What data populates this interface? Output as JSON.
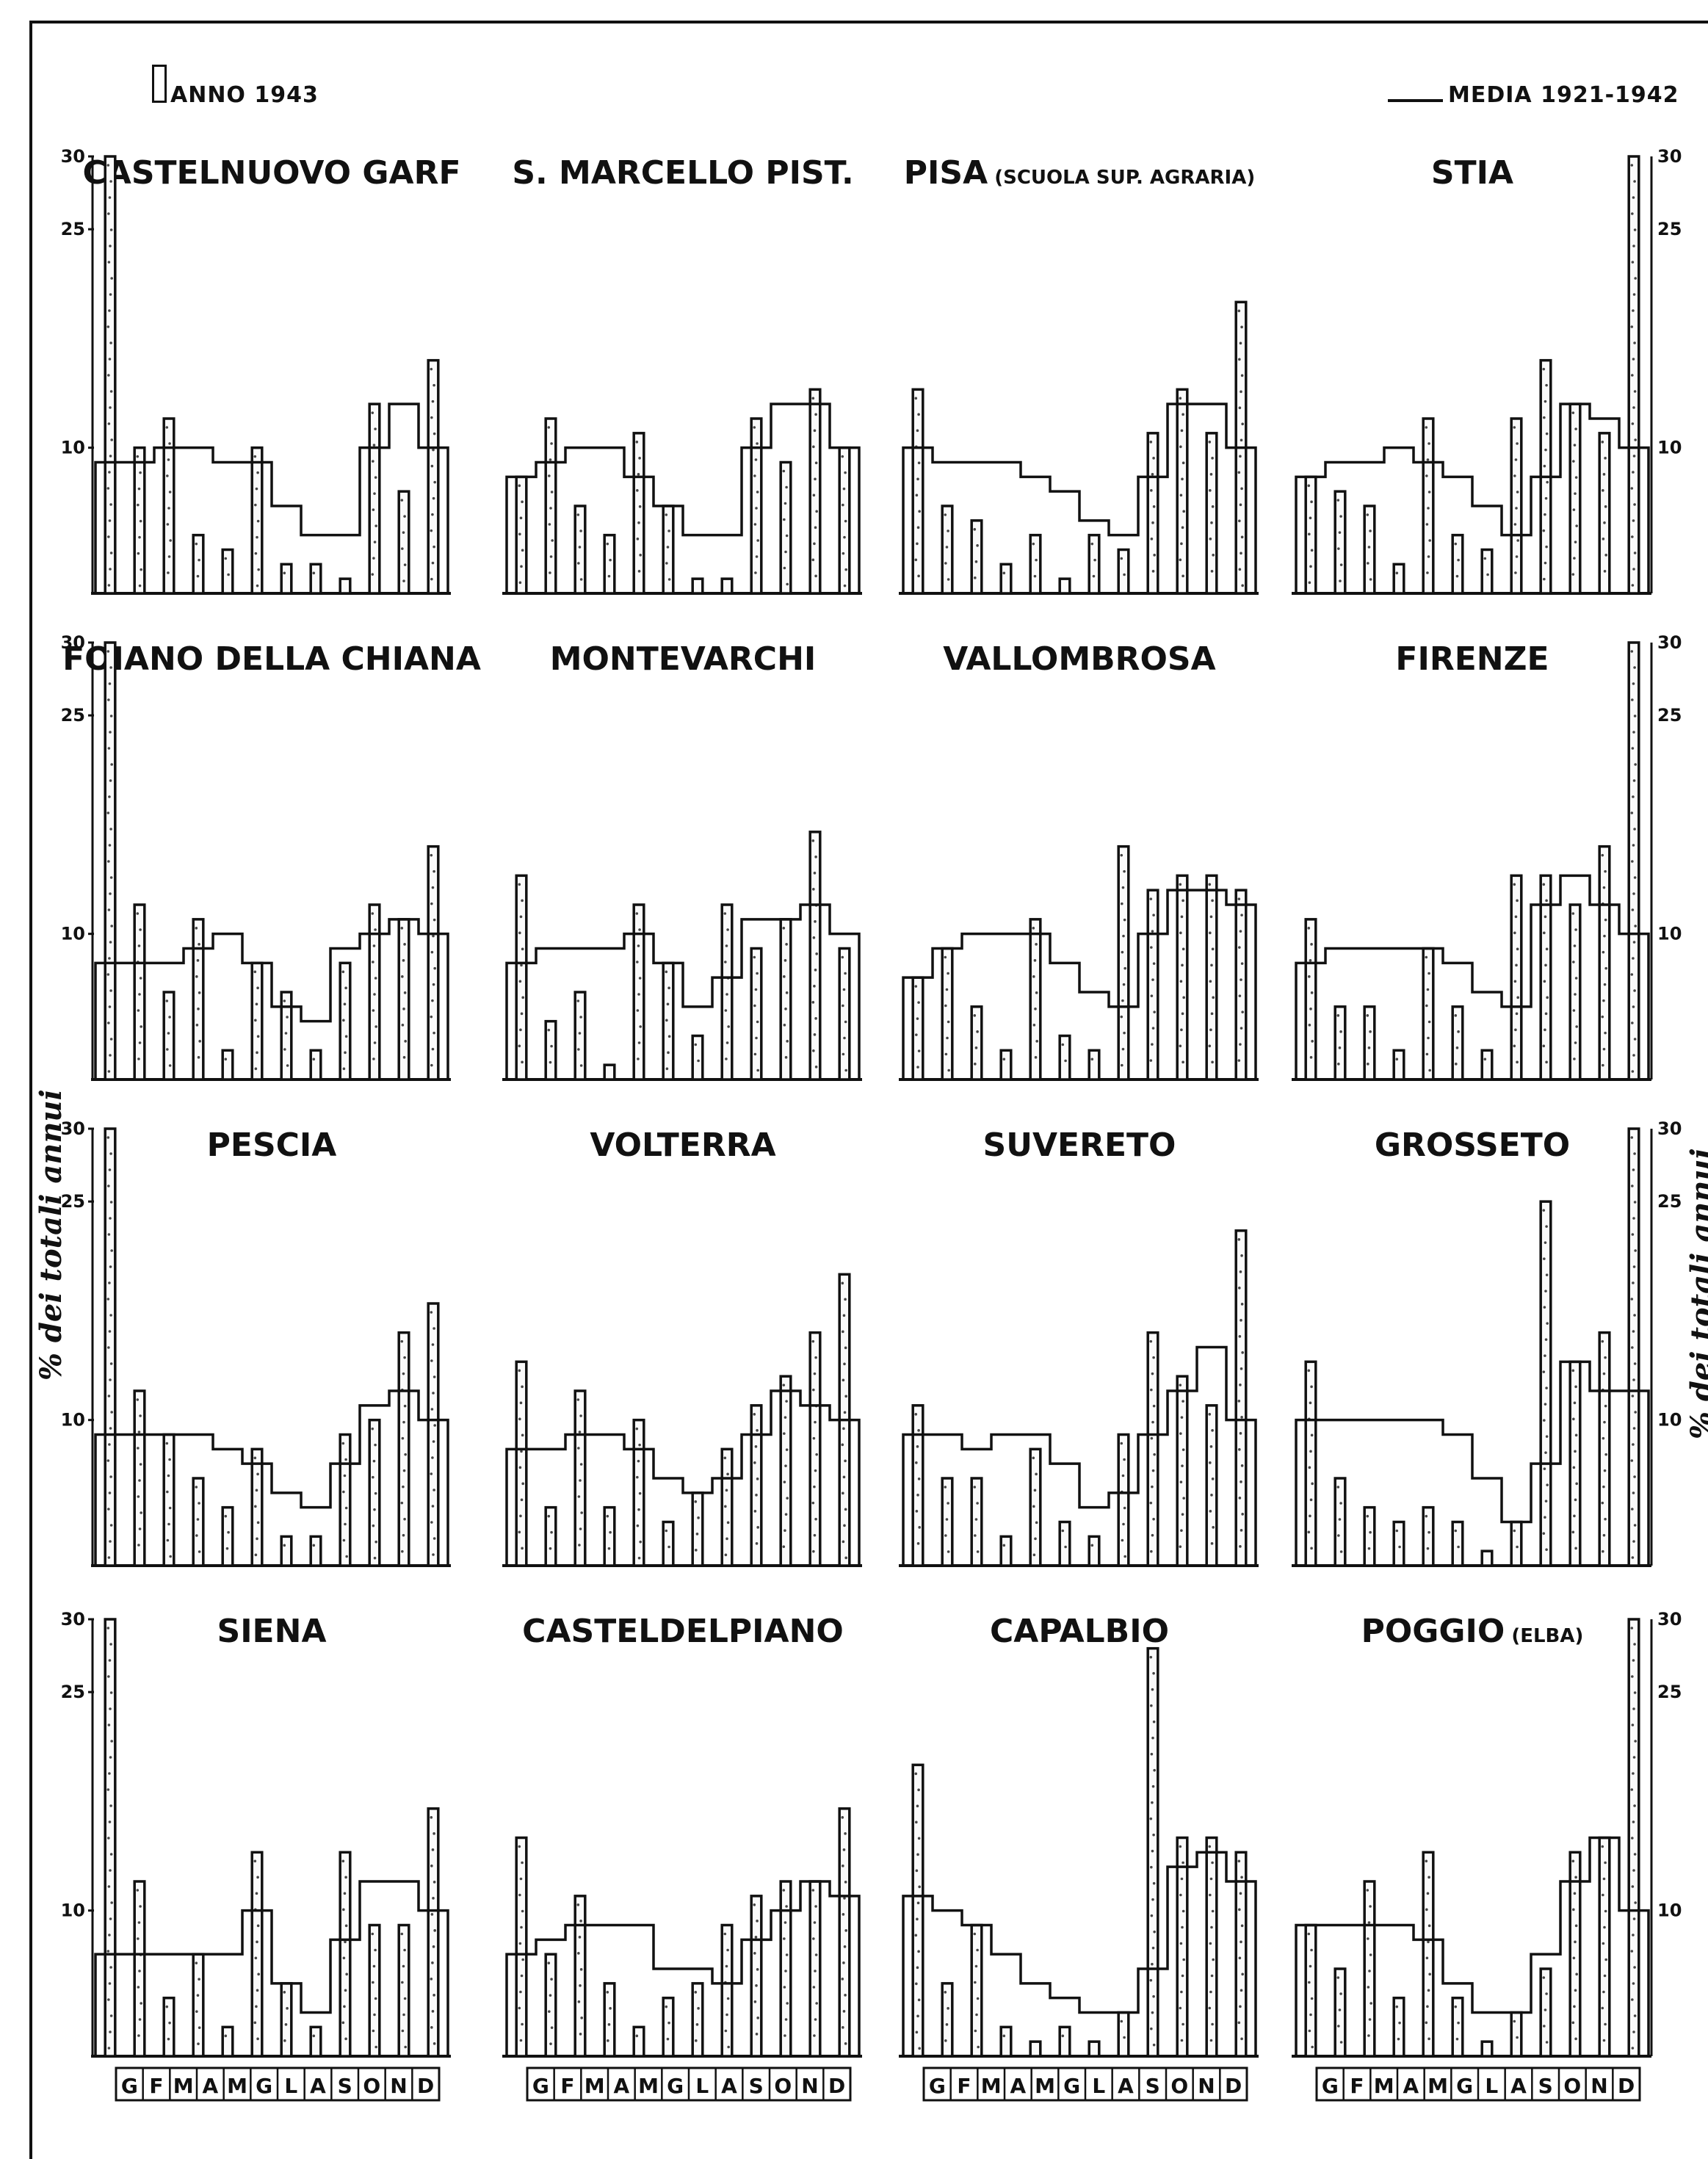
{
  "legend": {
    "bar_label": "ANNO 1943",
    "line_label": "MEDIA 1921-1942"
  },
  "side_label": "% dei totali annui",
  "chart_data": [
    {
      "type": "bar",
      "title": "CASTELNUOVO GARF",
      "title_suffix": "",
      "ylim": [
        0,
        30
      ],
      "left_axis_ticks": [
        "30",
        "25",
        "10"
      ],
      "right_axis_ticks": [],
      "categories": [
        "G",
        "F",
        "M",
        "A",
        "M",
        "G",
        "L",
        "A",
        "S",
        "O",
        "N",
        "D"
      ],
      "series": [
        {
          "name": "ANNO 1943",
          "values": [
            30,
            10,
            12,
            4,
            3,
            10,
            2,
            2,
            1,
            13,
            7,
            16
          ]
        },
        {
          "name": "MEDIA 1921-1942",
          "values": [
            9,
            9,
            10,
            10,
            9,
            9,
            6,
            4,
            4,
            10,
            13,
            10
          ]
        }
      ]
    },
    {
      "type": "bar",
      "title": "S. MARCELLO PIST.",
      "title_suffix": "",
      "ylim": [
        0,
        30
      ],
      "left_axis_ticks": [],
      "right_axis_ticks": [],
      "categories": [
        "G",
        "F",
        "M",
        "A",
        "M",
        "G",
        "L",
        "A",
        "S",
        "O",
        "N",
        "D"
      ],
      "series": [
        {
          "name": "ANNO 1943",
          "values": [
            8,
            12,
            6,
            4,
            11,
            6,
            1,
            1,
            12,
            9,
            14,
            10
          ]
        },
        {
          "name": "MEDIA 1921-1942",
          "values": [
            8,
            9,
            10,
            10,
            8,
            6,
            4,
            4,
            10,
            13,
            13,
            10
          ]
        }
      ]
    },
    {
      "type": "bar",
      "title": "PISA",
      "title_suffix": "(SCUOLA SUP. AGRARIA)",
      "ylim": [
        0,
        30
      ],
      "left_axis_ticks": [],
      "right_axis_ticks": [],
      "categories": [
        "G",
        "F",
        "M",
        "A",
        "M",
        "G",
        "L",
        "A",
        "S",
        "O",
        "N",
        "D"
      ],
      "series": [
        {
          "name": "ANNO 1943",
          "values": [
            14,
            6,
            5,
            2,
            4,
            1,
            4,
            3,
            11,
            14,
            11,
            20
          ]
        },
        {
          "name": "MEDIA 1921-1942",
          "values": [
            10,
            9,
            9,
            9,
            8,
            7,
            5,
            4,
            8,
            13,
            13,
            10
          ]
        }
      ]
    },
    {
      "type": "bar",
      "title": "STIA",
      "title_suffix": "",
      "ylim": [
        0,
        30
      ],
      "left_axis_ticks": [],
      "right_axis_ticks": [
        "30",
        "25",
        "10"
      ],
      "categories": [
        "G",
        "F",
        "M",
        "A",
        "M",
        "G",
        "L",
        "A",
        "S",
        "O",
        "N",
        "D"
      ],
      "series": [
        {
          "name": "ANNO 1943",
          "values": [
            8,
            7,
            6,
            2,
            12,
            4,
            3,
            12,
            16,
            13,
            11,
            30
          ]
        },
        {
          "name": "MEDIA 1921-1942",
          "values": [
            8,
            9,
            9,
            10,
            9,
            8,
            6,
            4,
            8,
            13,
            12,
            10
          ]
        }
      ]
    },
    {
      "type": "bar",
      "title": "FOIANO DELLA CHIANA",
      "title_suffix": "",
      "ylim": [
        0,
        30
      ],
      "left_axis_ticks": [
        "30",
        "25",
        "10"
      ],
      "right_axis_ticks": [],
      "categories": [
        "G",
        "F",
        "M",
        "A",
        "M",
        "G",
        "L",
        "A",
        "S",
        "O",
        "N",
        "D"
      ],
      "series": [
        {
          "name": "ANNO 1943",
          "values": [
            30,
            12,
            6,
            11,
            2,
            8,
            6,
            2,
            8,
            12,
            11,
            16
          ]
        },
        {
          "name": "MEDIA 1921-1942",
          "values": [
            8,
            8,
            8,
            9,
            10,
            8,
            5,
            4,
            9,
            10,
            11,
            10
          ]
        }
      ]
    },
    {
      "type": "bar",
      "title": "MONTEVARCHI",
      "title_suffix": "",
      "ylim": [
        0,
        30
      ],
      "left_axis_ticks": [],
      "right_axis_ticks": [],
      "categories": [
        "G",
        "F",
        "M",
        "A",
        "M",
        "G",
        "L",
        "A",
        "S",
        "O",
        "N",
        "D"
      ],
      "series": [
        {
          "name": "ANNO 1943",
          "values": [
            14,
            4,
            6,
            1,
            12,
            8,
            3,
            12,
            9,
            11,
            17,
            9
          ]
        },
        {
          "name": "MEDIA 1921-1942",
          "values": [
            8,
            9,
            9,
            9,
            10,
            8,
            5,
            7,
            11,
            11,
            12,
            10
          ]
        }
      ]
    },
    {
      "type": "bar",
      "title": "VALLOMBROSA",
      "title_suffix": "",
      "ylim": [
        0,
        30
      ],
      "left_axis_ticks": [],
      "right_axis_ticks": [],
      "categories": [
        "G",
        "F",
        "M",
        "A",
        "M",
        "G",
        "L",
        "A",
        "S",
        "O",
        "N",
        "D"
      ],
      "series": [
        {
          "name": "ANNO 1943",
          "values": [
            7,
            9,
            5,
            2,
            11,
            3,
            2,
            16,
            13,
            14,
            14,
            13
          ]
        },
        {
          "name": "MEDIA 1921-1942",
          "values": [
            7,
            9,
            10,
            10,
            10,
            8,
            6,
            5,
            10,
            13,
            13,
            12
          ]
        }
      ]
    },
    {
      "type": "bar",
      "title": "FIRENZE",
      "title_suffix": "",
      "ylim": [
        0,
        30
      ],
      "left_axis_ticks": [],
      "right_axis_ticks": [
        "30",
        "25",
        "10"
      ],
      "categories": [
        "G",
        "F",
        "M",
        "A",
        "M",
        "G",
        "L",
        "A",
        "S",
        "O",
        "N",
        "D"
      ],
      "series": [
        {
          "name": "ANNO 1943",
          "values": [
            11,
            5,
            5,
            2,
            9,
            5,
            2,
            14,
            14,
            12,
            16,
            30
          ]
        },
        {
          "name": "MEDIA 1921-1942",
          "values": [
            8,
            9,
            9,
            9,
            9,
            8,
            6,
            5,
            12,
            14,
            12,
            10
          ]
        }
      ]
    },
    {
      "type": "bar",
      "title": "PESCIA",
      "title_suffix": "",
      "ylim": [
        0,
        30
      ],
      "left_axis_ticks": [
        "30",
        "25",
        "10"
      ],
      "right_axis_ticks": [],
      "categories": [
        "G",
        "F",
        "M",
        "A",
        "M",
        "G",
        "L",
        "A",
        "S",
        "O",
        "N",
        "D"
      ],
      "series": [
        {
          "name": "ANNO 1943",
          "values": [
            30,
            12,
            9,
            6,
            4,
            8,
            2,
            2,
            9,
            10,
            16,
            18
          ]
        },
        {
          "name": "MEDIA 1921-1942",
          "values": [
            9,
            9,
            9,
            9,
            8,
            7,
            5,
            4,
            7,
            11,
            12,
            10
          ]
        }
      ]
    },
    {
      "type": "bar",
      "title": "VOLTERRA",
      "title_suffix": "",
      "ylim": [
        0,
        30
      ],
      "left_axis_ticks": [],
      "right_axis_ticks": [],
      "categories": [
        "G",
        "F",
        "M",
        "A",
        "M",
        "G",
        "L",
        "A",
        "S",
        "O",
        "N",
        "D"
      ],
      "series": [
        {
          "name": "ANNO 1943",
          "values": [
            14,
            4,
            12,
            4,
            10,
            3,
            5,
            8,
            11,
            13,
            16,
            20
          ]
        },
        {
          "name": "MEDIA 1921-1942",
          "values": [
            8,
            8,
            9,
            9,
            8,
            6,
            5,
            6,
            9,
            12,
            11,
            10
          ]
        }
      ]
    },
    {
      "type": "bar",
      "title": "SUVERETO",
      "title_suffix": "",
      "ylim": [
        0,
        30
      ],
      "left_axis_ticks": [],
      "right_axis_ticks": [],
      "categories": [
        "G",
        "F",
        "M",
        "A",
        "M",
        "G",
        "L",
        "A",
        "S",
        "O",
        "N",
        "D"
      ],
      "series": [
        {
          "name": "ANNO 1943",
          "values": [
            11,
            6,
            6,
            2,
            8,
            3,
            2,
            9,
            16,
            13,
            11,
            23
          ]
        },
        {
          "name": "MEDIA 1921-1942",
          "values": [
            9,
            9,
            8,
            9,
            9,
            7,
            4,
            5,
            9,
            12,
            15,
            10
          ]
        }
      ]
    },
    {
      "type": "bar",
      "title": "GROSSETO",
      "title_suffix": "",
      "ylim": [
        0,
        30
      ],
      "left_axis_ticks": [],
      "right_axis_ticks": [
        "30",
        "25",
        "10"
      ],
      "categories": [
        "G",
        "F",
        "M",
        "A",
        "M",
        "G",
        "L",
        "A",
        "S",
        "O",
        "N",
        "D"
      ],
      "series": [
        {
          "name": "ANNO 1943",
          "values": [
            14,
            6,
            4,
            3,
            4,
            3,
            1,
            3,
            25,
            14,
            16,
            30
          ]
        },
        {
          "name": "MEDIA 1921-1942",
          "values": [
            10,
            10,
            10,
            10,
            10,
            9,
            6,
            3,
            7,
            14,
            12,
            12
          ]
        }
      ]
    },
    {
      "type": "bar",
      "title": "SIENA",
      "title_suffix": "",
      "ylim": [
        0,
        30
      ],
      "left_axis_ticks": [
        "30",
        "25",
        "10"
      ],
      "right_axis_ticks": [],
      "categories": [
        "G",
        "F",
        "M",
        "A",
        "M",
        "G",
        "L",
        "A",
        "S",
        "O",
        "N",
        "D"
      ],
      "series": [
        {
          "name": "ANNO 1943",
          "values": [
            30,
            12,
            4,
            7,
            2,
            14,
            5,
            2,
            14,
            9,
            9,
            17
          ]
        },
        {
          "name": "MEDIA 1921-1942",
          "values": [
            7,
            7,
            7,
            7,
            7,
            10,
            5,
            3,
            8,
            12,
            12,
            10
          ]
        }
      ]
    },
    {
      "type": "bar",
      "title": "CASTELDELPIANO",
      "title_suffix": "",
      "ylim": [
        0,
        30
      ],
      "left_axis_ticks": [],
      "right_axis_ticks": [],
      "categories": [
        "G",
        "F",
        "M",
        "A",
        "M",
        "G",
        "L",
        "A",
        "S",
        "O",
        "N",
        "D"
      ],
      "series": [
        {
          "name": "ANNO 1943",
          "values": [
            15,
            7,
            11,
            5,
            2,
            4,
            5,
            9,
            11,
            12,
            12,
            17
          ]
        },
        {
          "name": "MEDIA 1921-1942",
          "values": [
            7,
            8,
            9,
            9,
            9,
            6,
            6,
            5,
            8,
            10,
            12,
            11
          ]
        }
      ]
    },
    {
      "type": "bar",
      "title": "CAPALBIO",
      "title_suffix": "",
      "ylim": [
        0,
        30
      ],
      "left_axis_ticks": [],
      "right_axis_ticks": [],
      "categories": [
        "G",
        "F",
        "M",
        "A",
        "M",
        "G",
        "L",
        "A",
        "S",
        "O",
        "N",
        "D"
      ],
      "series": [
        {
          "name": "ANNO 1943",
          "values": [
            20,
            5,
            9,
            2,
            1,
            2,
            1,
            3,
            28,
            15,
            15,
            14
          ]
        },
        {
          "name": "MEDIA 1921-1942",
          "values": [
            11,
            10,
            9,
            7,
            5,
            4,
            3,
            3,
            6,
            13,
            14,
            12
          ]
        }
      ]
    },
    {
      "type": "bar",
      "title": "POGGIO",
      "title_suffix": "(ELBA)",
      "ylim": [
        0,
        30
      ],
      "left_axis_ticks": [],
      "right_axis_ticks": [
        "30",
        "25",
        "10"
      ],
      "categories": [
        "G",
        "F",
        "M",
        "A",
        "M",
        "G",
        "L",
        "A",
        "S",
        "O",
        "N",
        "D"
      ],
      "series": [
        {
          "name": "ANNO 1943",
          "values": [
            9,
            6,
            12,
            4,
            14,
            4,
            1,
            3,
            6,
            14,
            15,
            30
          ]
        },
        {
          "name": "MEDIA 1921-1942",
          "values": [
            9,
            9,
            9,
            9,
            8,
            5,
            3,
            3,
            7,
            12,
            15,
            10
          ]
        }
      ]
    }
  ]
}
